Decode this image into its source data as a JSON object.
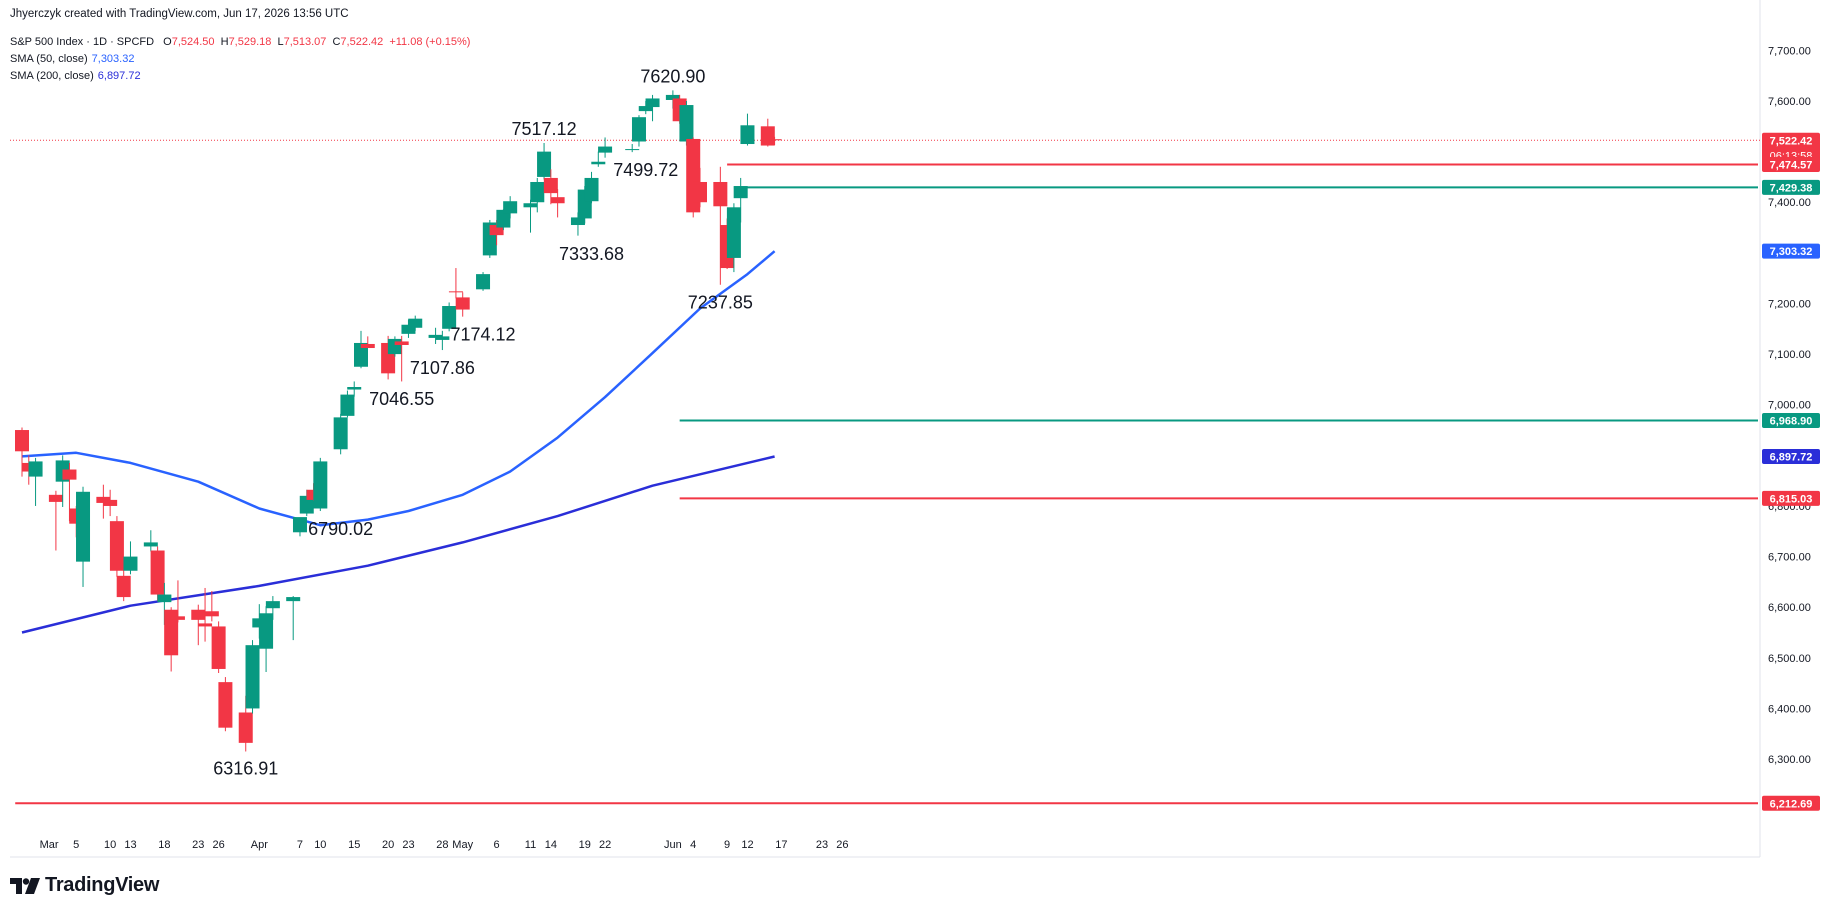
{
  "header": {
    "credit": "Jhyerczyk created with TradingView.com, Jun 17, 2026 13:56 UTC",
    "symbol": "S&P 500 Index · 1D · SPCFD",
    "ohlc": {
      "o_label": "O",
      "o": "7,524.50",
      "h_label": "H",
      "h": "7,529.18",
      "l_label": "L",
      "l": "7,513.07",
      "c_label": "C",
      "c": "7,522.42",
      "change": "+11.08 (+0.15%)"
    },
    "sma50": {
      "label": "SMA (50, close)",
      "value": "7,303.32"
    },
    "sma200": {
      "label": "SMA (200, close)",
      "value": "6,897.72"
    }
  },
  "logo": {
    "text": "TradingView",
    "icon": "tradingview-logo-icon"
  },
  "colors": {
    "up": "#089981",
    "down": "#f23645",
    "sma50": "#2962ff",
    "sma200": "#2a2ed8",
    "teal_line": "#089981",
    "red_line": "#f23645"
  },
  "chart_data": {
    "type": "candlestick",
    "y_axis": {
      "min": 6150,
      "max": 7760,
      "ticks": [
        6300,
        6400,
        6500,
        6600,
        6700,
        6800,
        6900,
        7000,
        7100,
        7200,
        7300,
        7400,
        7500,
        7600,
        7700
      ],
      "tick_labels": [
        "6,300.00",
        "6,400.00",
        "6,500.00",
        "6,600.00",
        "6,700.00",
        "6,800.00",
        "6,900.00",
        "7,000.00",
        "7,100.00",
        "7,200.00",
        "7,300.00",
        "7,400.00",
        "7,500.00",
        "7,600.00",
        "7,700.00"
      ],
      "position": "right"
    },
    "x_axis": {
      "ticks": [
        {
          "label": "Mar",
          "x": "2026-03-01"
        },
        {
          "label": "5",
          "x": "2026-03-05"
        },
        {
          "label": "10",
          "x": "2026-03-10"
        },
        {
          "label": "13",
          "x": "2026-03-13"
        },
        {
          "label": "18",
          "x": "2026-03-18"
        },
        {
          "label": "23",
          "x": "2026-03-23"
        },
        {
          "label": "26",
          "x": "2026-03-26"
        },
        {
          "label": "Apr",
          "x": "2026-04-01"
        },
        {
          "label": "7",
          "x": "2026-04-07"
        },
        {
          "label": "10",
          "x": "2026-04-10"
        },
        {
          "label": "15",
          "x": "2026-04-15"
        },
        {
          "label": "20",
          "x": "2026-04-20"
        },
        {
          "label": "23",
          "x": "2026-04-23"
        },
        {
          "label": "28",
          "x": "2026-04-28"
        },
        {
          "label": "May",
          "x": "2026-05-01"
        },
        {
          "label": "6",
          "x": "2026-05-06"
        },
        {
          "label": "11",
          "x": "2026-05-11"
        },
        {
          "label": "14",
          "x": "2026-05-14"
        },
        {
          "label": "19",
          "x": "2026-05-19"
        },
        {
          "label": "22",
          "x": "2026-05-22"
        },
        {
          "label": "Jun",
          "x": "2026-06-01"
        },
        {
          "label": "4",
          "x": "2026-06-04"
        },
        {
          "label": "9",
          "x": "2026-06-09"
        },
        {
          "label": "12",
          "x": "2026-06-12"
        },
        {
          "label": "17",
          "x": "2026-06-17"
        },
        {
          "label": "23",
          "x": "2026-06-23"
        },
        {
          "label": "26",
          "x": "2026-06-26"
        }
      ]
    },
    "candles": [
      {
        "date": "2026-02-25",
        "o": 6950,
        "h": 6955,
        "l": 6858,
        "c": 6908
      },
      {
        "date": "2026-02-26",
        "o": 6885,
        "h": 6900,
        "l": 6842,
        "c": 6868
      },
      {
        "date": "2026-02-27",
        "o": 6858,
        "h": 6895,
        "l": 6800,
        "c": 6888
      },
      {
        "date": "2026-03-02",
        "o": 6822,
        "h": 6830,
        "l": 6712,
        "c": 6808
      },
      {
        "date": "2026-03-03",
        "o": 6848,
        "h": 6900,
        "l": 6798,
        "c": 6890
      },
      {
        "date": "2026-03-04",
        "o": 6872,
        "h": 6885,
        "l": 6770,
        "c": 6852
      },
      {
        "date": "2026-03-05",
        "o": 6795,
        "h": 6800,
        "l": 6738,
        "c": 6765
      },
      {
        "date": "2026-03-06",
        "o": 6690,
        "h": 6838,
        "l": 6640,
        "c": 6828
      },
      {
        "date": "2026-03-09",
        "o": 6818,
        "h": 6842,
        "l": 6775,
        "c": 6806
      },
      {
        "date": "2026-03-10",
        "o": 6812,
        "h": 6832,
        "l": 6780,
        "c": 6800
      },
      {
        "date": "2026-03-11",
        "o": 6770,
        "h": 6780,
        "l": 6660,
        "c": 6672
      },
      {
        "date": "2026-03-12",
        "o": 6662,
        "h": 6688,
        "l": 6612,
        "c": 6620
      },
      {
        "date": "2026-03-13",
        "o": 6672,
        "h": 6730,
        "l": 6665,
        "c": 6700
      },
      {
        "date": "2026-03-16",
        "o": 6720,
        "h": 6752,
        "l": 6710,
        "c": 6728
      },
      {
        "date": "2026-03-17",
        "o": 6712,
        "h": 6720,
        "l": 6612,
        "c": 6625
      },
      {
        "date": "2026-03-18",
        "o": 6610,
        "h": 6648,
        "l": 6565,
        "c": 6625
      },
      {
        "date": "2026-03-19",
        "o": 6595,
        "h": 6600,
        "l": 6473,
        "c": 6505
      },
      {
        "date": "2026-03-20",
        "o": 6582,
        "h": 6653,
        "l": 6570,
        "c": 6575
      },
      {
        "date": "2026-03-23",
        "o": 6595,
        "h": 6605,
        "l": 6525,
        "c": 6575
      },
      {
        "date": "2026-03-24",
        "o": 6568,
        "h": 6638,
        "l": 6532,
        "c": 6562
      },
      {
        "date": "2026-03-25",
        "o": 6592,
        "h": 6632,
        "l": 6572,
        "c": 6582
      },
      {
        "date": "2026-03-26",
        "o": 6562,
        "h": 6572,
        "l": 6470,
        "c": 6478
      },
      {
        "date": "2026-03-27",
        "o": 6452,
        "h": 6462,
        "l": 6355,
        "c": 6362
      },
      {
        "date": "2026-03-30",
        "o": 6392,
        "h": 6425,
        "l": 6315,
        "c": 6332
      },
      {
        "date": "2026-03-31",
        "o": 6400,
        "h": 6535,
        "l": 6390,
        "c": 6525
      },
      {
        "date": "2026-04-01",
        "o": 6560,
        "h": 6606,
        "l": 6538,
        "c": 6578
      },
      {
        "date": "2026-04-02",
        "o": 6518,
        "h": 6602,
        "l": 6472,
        "c": 6588
      },
      {
        "date": "2026-04-03",
        "o": 6598,
        "h": 6622,
        "l": 6575,
        "c": 6612
      },
      {
        "date": "2026-04-06",
        "o": 6612,
        "h": 6622,
        "l": 6535,
        "c": 6620
      },
      {
        "date": "2026-04-07",
        "o": 6748,
        "h": 6775,
        "l": 6740,
        "c": 6778
      },
      {
        "date": "2026-04-08",
        "o": 6785,
        "h": 6832,
        "l": 6780,
        "c": 6820
      },
      {
        "date": "2026-04-09",
        "o": 6832,
        "h": 6845,
        "l": 6810,
        "c": 6812
      },
      {
        "date": "2026-04-10",
        "o": 6795,
        "h": 6895,
        "l": 6790,
        "c": 6888
      },
      {
        "date": "2026-04-13",
        "o": 6912,
        "h": 6982,
        "l": 6902,
        "c": 6975
      },
      {
        "date": "2026-04-14",
        "o": 6978,
        "h": 7028,
        "l": 6975,
        "c": 7020
      },
      {
        "date": "2026-04-15",
        "o": 7030,
        "h": 7046,
        "l": 7016,
        "c": 7035
      },
      {
        "date": "2026-04-16",
        "o": 7075,
        "h": 7146,
        "l": 7072,
        "c": 7122
      },
      {
        "date": "2026-04-17",
        "o": 7120,
        "h": 7135,
        "l": 7112,
        "c": 7112
      },
      {
        "date": "2026-04-20",
        "o": 7122,
        "h": 7136,
        "l": 7050,
        "c": 7062
      },
      {
        "date": "2026-04-21",
        "o": 7100,
        "h": 7135,
        "l": 7095,
        "c": 7130
      },
      {
        "date": "2026-04-22",
        "o": 7125,
        "h": 7136,
        "l": 7046,
        "c": 7118
      },
      {
        "date": "2026-04-23",
        "o": 7140,
        "h": 7168,
        "l": 7132,
        "c": 7158
      },
      {
        "date": "2026-04-24",
        "o": 7152,
        "h": 7176,
        "l": 7146,
        "c": 7170
      },
      {
        "date": "2026-04-27",
        "o": 7132,
        "h": 7152,
        "l": 7120,
        "c": 7138
      },
      {
        "date": "2026-04-28",
        "o": 7128,
        "h": 7146,
        "l": 7108,
        "c": 7135
      },
      {
        "date": "2026-04-29",
        "o": 7150,
        "h": 7202,
        "l": 7145,
        "c": 7195
      },
      {
        "date": "2026-04-30",
        "o": 7224,
        "h": 7270,
        "l": 7210,
        "c": 7222
      },
      {
        "date": "2026-05-01",
        "o": 7212,
        "h": 7222,
        "l": 7174,
        "c": 7188
      },
      {
        "date": "2026-05-04",
        "o": 7228,
        "h": 7262,
        "l": 7225,
        "c": 7258
      },
      {
        "date": "2026-05-05",
        "o": 7295,
        "h": 7365,
        "l": 7290,
        "c": 7360
      },
      {
        "date": "2026-05-06",
        "o": 7355,
        "h": 7365,
        "l": 7315,
        "c": 7335
      },
      {
        "date": "2026-05-07",
        "o": 7350,
        "h": 7386,
        "l": 7345,
        "c": 7385
      },
      {
        "date": "2026-05-08",
        "o": 7378,
        "h": 7412,
        "l": 7368,
        "c": 7402
      },
      {
        "date": "2026-05-11",
        "o": 7390,
        "h": 7405,
        "l": 7340,
        "c": 7398
      },
      {
        "date": "2026-05-12",
        "o": 7400,
        "h": 7448,
        "l": 7380,
        "c": 7440
      },
      {
        "date": "2026-05-13",
        "o": 7450,
        "h": 7517,
        "l": 7445,
        "c": 7500
      },
      {
        "date": "2026-05-14",
        "o": 7448,
        "h": 7465,
        "l": 7396,
        "c": 7418
      },
      {
        "date": "2026-05-15",
        "o": 7410,
        "h": 7426,
        "l": 7370,
        "c": 7398
      },
      {
        "date": "2026-05-18",
        "o": 7355,
        "h": 7380,
        "l": 7334,
        "c": 7370
      },
      {
        "date": "2026-05-19",
        "o": 7368,
        "h": 7432,
        "l": 7358,
        "c": 7425
      },
      {
        "date": "2026-05-20",
        "o": 7402,
        "h": 7460,
        "l": 7398,
        "c": 7448
      },
      {
        "date": "2026-05-21",
        "o": 7475,
        "h": 7500,
        "l": 7470,
        "c": 7480
      },
      {
        "date": "2026-05-22",
        "o": 7498,
        "h": 7528,
        "l": 7488,
        "c": 7510
      },
      {
        "date": "2026-05-26",
        "o": 7505,
        "h": 7515,
        "l": 7499,
        "c": 7505
      },
      {
        "date": "2026-05-27",
        "o": 7520,
        "h": 7572,
        "l": 7510,
        "c": 7568
      },
      {
        "date": "2026-05-28",
        "o": 7580,
        "h": 7600,
        "l": 7574,
        "c": 7590
      },
      {
        "date": "2026-05-29",
        "o": 7588,
        "h": 7612,
        "l": 7560,
        "c": 7605
      },
      {
        "date": "2026-06-01",
        "o": 7602,
        "h": 7621,
        "l": 7585,
        "c": 7612
      },
      {
        "date": "2026-06-02",
        "o": 7605,
        "h": 7612,
        "l": 7555,
        "c": 7560
      },
      {
        "date": "2026-06-03",
        "o": 7520,
        "h": 7600,
        "l": 7512,
        "c": 7592
      },
      {
        "date": "2026-06-04",
        "o": 7525,
        "h": 7528,
        "l": 7370,
        "c": 7380
      },
      {
        "date": "2026-06-05",
        "o": 7440,
        "h": 7468,
        "l": 7390,
        "c": 7400
      },
      {
        "date": "2026-06-08",
        "o": 7440,
        "h": 7470,
        "l": 7237,
        "c": 7392
      },
      {
        "date": "2026-06-09",
        "o": 7355,
        "h": 7368,
        "l": 7268,
        "c": 7270
      },
      {
        "date": "2026-06-10",
        "o": 7290,
        "h": 7398,
        "l": 7262,
        "c": 7390
      },
      {
        "date": "2026-06-11",
        "o": 7408,
        "h": 7448,
        "l": 7360,
        "c": 7432
      },
      {
        "date": "2026-06-12",
        "o": 7515,
        "h": 7575,
        "l": 7512,
        "c": 7552
      },
      {
        "date": "2026-06-15",
        "o": 7550,
        "h": 7565,
        "l": 7510,
        "c": 7512
      },
      {
        "date": "2026-06-16",
        "o": 7524.5,
        "h": 7529.18,
        "l": 7513.07,
        "c": 7522.42
      }
    ],
    "series": [
      {
        "name": "SMA (50, close)",
        "points": [
          {
            "x": "2026-02-25",
            "y": 6898
          },
          {
            "x": "2026-03-05",
            "y": 6905
          },
          {
            "x": "2026-03-13",
            "y": 6885
          },
          {
            "x": "2026-03-23",
            "y": 6848
          },
          {
            "x": "2026-04-01",
            "y": 6795
          },
          {
            "x": "2026-04-10",
            "y": 6762
          },
          {
            "x": "2026-04-17",
            "y": 6773
          },
          {
            "x": "2026-04-23",
            "y": 6790
          },
          {
            "x": "2026-05-01",
            "y": 6822
          },
          {
            "x": "2026-05-08",
            "y": 6868
          },
          {
            "x": "2026-05-15",
            "y": 6935
          },
          {
            "x": "2026-05-22",
            "y": 7015
          },
          {
            "x": "2026-05-29",
            "y": 7102
          },
          {
            "x": "2026-06-05",
            "y": 7190
          },
          {
            "x": "2026-06-12",
            "y": 7258
          },
          {
            "x": "2026-06-16",
            "y": 7303.32
          }
        ]
      },
      {
        "name": "SMA (200, close)",
        "points": [
          {
            "x": "2026-02-25",
            "y": 6550
          },
          {
            "x": "2026-03-13",
            "y": 6603
          },
          {
            "x": "2026-04-01",
            "y": 6642
          },
          {
            "x": "2026-04-17",
            "y": 6682
          },
          {
            "x": "2026-05-01",
            "y": 6728
          },
          {
            "x": "2026-05-15",
            "y": 6780
          },
          {
            "x": "2026-05-29",
            "y": 6840
          },
          {
            "x": "2026-06-16",
            "y": 6897.72
          }
        ]
      }
    ],
    "horizontal_lines": [
      {
        "y": 7474.57,
        "color": "red",
        "from": "2026-06-09"
      },
      {
        "y": 7429.38,
        "color": "teal",
        "from": "2026-06-10"
      },
      {
        "y": 6968.9,
        "color": "teal",
        "from": "2026-06-02"
      },
      {
        "y": 6815.03,
        "color": "red",
        "from": "2026-06-02"
      },
      {
        "y": 6212.69,
        "color": "red",
        "from": "2026-02-24"
      }
    ],
    "price_labels": [
      {
        "y": 7522.42,
        "text": "7,522.42",
        "sub": "06:13:58",
        "color": "red"
      },
      {
        "y": 7474.57,
        "text": "7,474.57",
        "color": "red"
      },
      {
        "y": 7429.38,
        "text": "7,429.38",
        "color": "teal"
      },
      {
        "y": 7303.32,
        "text": "7,303.32",
        "color": "blue"
      },
      {
        "y": 6968.9,
        "text": "6,968.90",
        "color": "teal"
      },
      {
        "y": 6897.72,
        "text": "6,897.72",
        "color": "indigo"
      },
      {
        "y": 6815.03,
        "text": "6,815.03",
        "color": "red"
      },
      {
        "y": 6212.69,
        "text": "6,212.69",
        "color": "red"
      }
    ],
    "current_price_line": 7522.42,
    "annotations": [
      {
        "text": "6316.91",
        "x": "2026-03-30",
        "y": 6316.91,
        "pos": "below"
      },
      {
        "text": "6790.02",
        "x": "2026-04-13",
        "y": 6790.02,
        "pos": "below"
      },
      {
        "text": "7046.55",
        "x": "2026-04-22",
        "y": 7046.55,
        "pos": "below"
      },
      {
        "text": "7107.86",
        "x": "2026-04-28",
        "y": 7107.86,
        "pos": "below"
      },
      {
        "text": "7174.12",
        "x": "2026-05-04",
        "y": 7174.12,
        "pos": "below"
      },
      {
        "text": "7517.12",
        "x": "2026-05-13",
        "y": 7517.12,
        "pos": "above"
      },
      {
        "text": "7333.68",
        "x": "2026-05-20",
        "y": 7333.68,
        "pos": "below"
      },
      {
        "text": "7499.72",
        "x": "2026-05-28",
        "y": 7499.72,
        "pos": "below"
      },
      {
        "text": "7620.90",
        "x": "2026-06-01",
        "y": 7620.9,
        "pos": "above"
      },
      {
        "text": "7237.85",
        "x": "2026-06-08",
        "y": 7237.85,
        "pos": "below"
      }
    ]
  }
}
